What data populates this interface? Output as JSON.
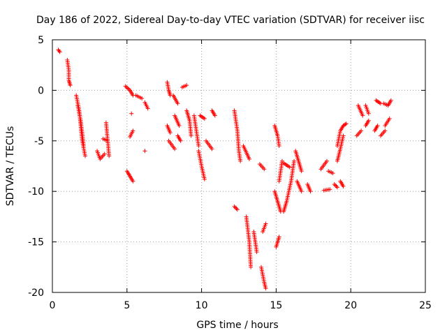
{
  "chart_data": {
    "type": "scatter",
    "title": "Day 186 of 2022, Sidereal Day-to-day VTEC variation (SDTVAR) for receiver iisc",
    "xlabel": "GPS time / hours",
    "ylabel": "SDTVAR / TECUs",
    "xlim": [
      0,
      25
    ],
    "ylim": [
      -20,
      5
    ],
    "xticks": [
      "0",
      "5",
      "10",
      "15",
      "20",
      "25"
    ],
    "yticks": [
      "5",
      "0",
      "-5",
      "-10",
      "-15",
      "-20"
    ],
    "xtick_values": [
      0,
      5,
      10,
      15,
      20,
      25
    ],
    "ytick_values": [
      5,
      0,
      -5,
      -10,
      -15,
      -20
    ],
    "grid": true,
    "marker": "+",
    "marker_color": "#ff0000",
    "series": [
      {
        "name": "SDTVAR",
        "segments": [
          [
            [
              0.4,
              4.0
            ],
            [
              0.5,
              3.8
            ]
          ],
          [
            [
              1.0,
              3.0
            ],
            [
              1.1,
              2.0
            ],
            [
              1.1,
              1.0
            ],
            [
              1.2,
              0.5
            ]
          ],
          [
            [
              1.6,
              -0.5
            ],
            [
              1.8,
              -2.0
            ],
            [
              1.9,
              -3.5
            ],
            [
              2.0,
              -5.0
            ],
            [
              2.2,
              -6.5
            ]
          ],
          [
            [
              1.7,
              -1.5
            ],
            [
              1.9,
              -3.0
            ],
            [
              2.1,
              -5.5
            ]
          ],
          [
            [
              3.0,
              -6.0
            ],
            [
              3.2,
              -6.8
            ],
            [
              3.5,
              -6.3
            ]
          ],
          [
            [
              3.4,
              -4.8
            ],
            [
              3.7,
              -5.0
            ]
          ],
          [
            [
              3.6,
              -3.2
            ],
            [
              3.8,
              -6.5
            ]
          ],
          [
            [
              4.9,
              0.4
            ],
            [
              5.2,
              0.0
            ],
            [
              5.4,
              -0.5
            ]
          ],
          [
            [
              5.6,
              -0.5
            ],
            [
              6.0,
              -0.8
            ]
          ],
          [
            [
              5.3,
              -2.3
            ]
          ],
          [
            [
              5.2,
              -4.6
            ],
            [
              5.4,
              -4.0
            ]
          ],
          [
            [
              5.0,
              -8.0
            ],
            [
              5.2,
              -8.5
            ],
            [
              5.4,
              -9.0
            ]
          ],
          [
            [
              6.2,
              -1.2
            ],
            [
              6.4,
              -1.8
            ]
          ],
          [
            [
              6.2,
              -6.0
            ]
          ],
          [
            [
              7.7,
              0.8
            ],
            [
              7.8,
              0.0
            ],
            [
              7.9,
              -0.5
            ]
          ],
          [
            [
              8.1,
              -0.5
            ],
            [
              8.4,
              -1.3
            ]
          ],
          [
            [
              7.7,
              -3.5
            ],
            [
              7.9,
              -4.2
            ]
          ],
          [
            [
              8.2,
              -2.5
            ],
            [
              8.5,
              -3.5
            ]
          ],
          [
            [
              8.7,
              0.3
            ],
            [
              9.0,
              0.5
            ]
          ],
          [
            [
              7.8,
              -5.0
            ],
            [
              8.2,
              -5.8
            ]
          ],
          [
            [
              8.4,
              -4.5
            ],
            [
              8.6,
              -5.0
            ]
          ],
          [
            [
              9.0,
              -2.0
            ],
            [
              9.2,
              -3.0
            ],
            [
              9.3,
              -4.5
            ]
          ],
          [
            [
              9.5,
              -2.5
            ],
            [
              9.8,
              -5.5
            ]
          ],
          [
            [
              9.9,
              -2.5
            ],
            [
              10.2,
              -2.8
            ]
          ],
          [
            [
              9.8,
              -6.0
            ],
            [
              10.0,
              -7.5
            ],
            [
              10.2,
              -8.8
            ]
          ],
          [
            [
              10.3,
              -5.0
            ],
            [
              10.7,
              -5.8
            ]
          ],
          [
            [
              10.7,
              -2.0
            ],
            [
              10.9,
              -2.5
            ]
          ],
          [
            [
              12.2,
              -2.0
            ],
            [
              12.4,
              -4.0
            ],
            [
              12.5,
              -6.0
            ],
            [
              12.6,
              -7.0
            ]
          ],
          [
            [
              12.2,
              -11.5
            ],
            [
              12.4,
              -11.8
            ]
          ],
          [
            [
              12.8,
              -5.5
            ],
            [
              13.2,
              -6.8
            ]
          ],
          [
            [
              13.0,
              -12.5
            ],
            [
              13.2,
              -15.0
            ],
            [
              13.3,
              -17.5
            ]
          ],
          [
            [
              13.5,
              -14.0
            ],
            [
              13.7,
              -16.0
            ]
          ],
          [
            [
              13.9,
              -7.3
            ],
            [
              14.2,
              -7.8
            ]
          ],
          [
            [
              14.0,
              -17.5
            ],
            [
              14.2,
              -19.0
            ],
            [
              14.3,
              -19.6
            ]
          ],
          [
            [
              14.1,
              -14.0
            ],
            [
              14.3,
              -13.2
            ]
          ],
          [
            [
              14.9,
              -3.5
            ],
            [
              15.1,
              -4.5
            ],
            [
              15.2,
              -5.5
            ]
          ],
          [
            [
              14.9,
              -10.0
            ],
            [
              15.1,
              -11.0
            ],
            [
              15.3,
              -12.0
            ]
          ],
          [
            [
              15.0,
              -15.5
            ],
            [
              15.2,
              -14.5
            ]
          ],
          [
            [
              15.2,
              -9.0
            ],
            [
              15.4,
              -7.0
            ]
          ],
          [
            [
              15.5,
              -7.2
            ],
            [
              15.9,
              -7.6
            ]
          ],
          [
            [
              15.5,
              -12.0
            ],
            [
              15.7,
              -11.0
            ],
            [
              16.0,
              -9.0
            ],
            [
              16.2,
              -7.0
            ]
          ],
          [
            [
              16.3,
              -6.0
            ],
            [
              16.5,
              -7.0
            ],
            [
              16.7,
              -8.0
            ]
          ],
          [
            [
              16.4,
              -9.0
            ],
            [
              16.7,
              -10.0
            ]
          ],
          [
            [
              17.1,
              -9.3
            ],
            [
              17.3,
              -10.0
            ]
          ],
          [
            [
              18.0,
              -7.8
            ],
            [
              18.4,
              -7.0
            ]
          ],
          [
            [
              18.2,
              -9.9
            ],
            [
              18.6,
              -9.8
            ]
          ],
          [
            [
              18.5,
              -8.0
            ],
            [
              18.8,
              -8.2
            ]
          ],
          [
            [
              18.9,
              -9.3
            ],
            [
              19.1,
              -9.6
            ]
          ],
          [
            [
              19.1,
              -5.5
            ],
            [
              19.3,
              -4.0
            ],
            [
              19.5,
              -3.5
            ],
            [
              19.7,
              -3.3
            ]
          ],
          [
            [
              19.1,
              -7.0
            ],
            [
              19.3,
              -5.8
            ],
            [
              19.5,
              -4.5
            ]
          ],
          [
            [
              19.3,
              -9.0
            ],
            [
              19.5,
              -9.5
            ]
          ],
          [
            [
              20.4,
              -4.5
            ],
            [
              20.7,
              -4.0
            ]
          ],
          [
            [
              20.5,
              -1.5
            ],
            [
              20.8,
              -2.5
            ]
          ],
          [
            [
              21.0,
              -3.5
            ],
            [
              21.2,
              -3.0
            ]
          ],
          [
            [
              21.0,
              -1.5
            ],
            [
              21.2,
              -2.3
            ]
          ],
          [
            [
              21.6,
              -4.0
            ],
            [
              21.8,
              -3.5
            ]
          ],
          [
            [
              21.7,
              -1.0
            ],
            [
              22.0,
              -1.3
            ]
          ],
          [
            [
              22.0,
              -4.5
            ],
            [
              22.3,
              -4.0
            ]
          ],
          [
            [
              22.2,
              -1.3
            ],
            [
              22.5,
              -1.5
            ],
            [
              22.7,
              -1.0
            ]
          ],
          [
            [
              22.3,
              -3.5
            ],
            [
              22.6,
              -2.8
            ]
          ]
        ]
      }
    ]
  }
}
